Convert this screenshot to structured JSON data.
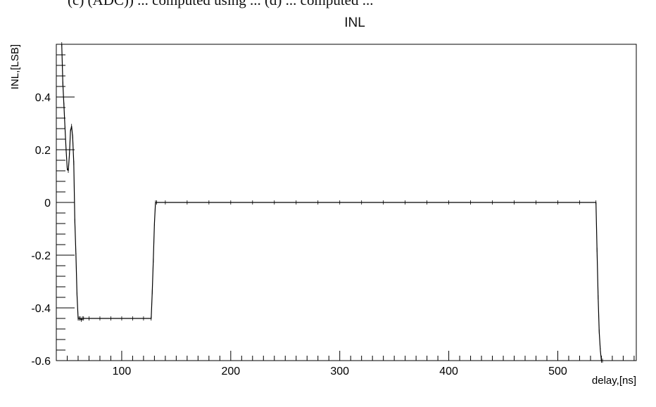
{
  "header_fragment": "(c) (ADC)) ... computed using ... (d) ... computed ... ",
  "chart_data": {
    "type": "line",
    "title": "INL",
    "xlabel": "delay,[ns]",
    "ylabel": "INL,[LSB]",
    "xlim": [
      40,
      572
    ],
    "ylim": [
      -0.6,
      0.6
    ],
    "x_ticks": [
      100,
      200,
      300,
      400,
      500
    ],
    "y_ticks": [
      -0.6,
      -0.4,
      -0.2,
      0,
      0.2,
      0.4
    ],
    "x_tick_labels": [
      "100",
      "200",
      "300",
      "400",
      "500"
    ],
    "y_tick_labels": [
      "-0.6",
      "-0.4",
      "-0.2",
      "0",
      "0.2",
      "0.4"
    ],
    "grid": false,
    "legend": "none",
    "error_bars": true,
    "line_color": "#000000",
    "series": [
      {
        "x": [
          45,
          46,
          47,
          48,
          49,
          50,
          51,
          52,
          53,
          54,
          55,
          56,
          57,
          58,
          59,
          60,
          61,
          62,
          63,
          64,
          65,
          70,
          80,
          90,
          100,
          110,
          120,
          127,
          128,
          129,
          130,
          131,
          132,
          140,
          160,
          180,
          200,
          220,
          240,
          260,
          280,
          300,
          320,
          340,
          360,
          380,
          400,
          420,
          440,
          460,
          480,
          500,
          520,
          535,
          536,
          537,
          538,
          539,
          540,
          541
        ],
        "y": [
          0.6,
          0.45,
          0.37,
          0.28,
          0.2,
          0.13,
          0.12,
          0.18,
          0.27,
          0.29,
          0.25,
          0.15,
          -0.07,
          -0.2,
          -0.35,
          -0.44,
          -0.44,
          -0.44,
          -0.445,
          -0.44,
          -0.44,
          -0.44,
          -0.44,
          -0.44,
          -0.44,
          -0.44,
          -0.44,
          -0.44,
          -0.34,
          -0.22,
          -0.08,
          0.0,
          0.0,
          0.0,
          0.0,
          0.0,
          0.0,
          0.0,
          0.0,
          0.0,
          0.0,
          0.0,
          0.0,
          0.0,
          0.0,
          0.0,
          0.0,
          0.0,
          0.0,
          0.0,
          0.0,
          0.0,
          0.0,
          0.0,
          -0.18,
          -0.36,
          -0.49,
          -0.56,
          -0.6,
          -0.6
        ]
      }
    ]
  }
}
